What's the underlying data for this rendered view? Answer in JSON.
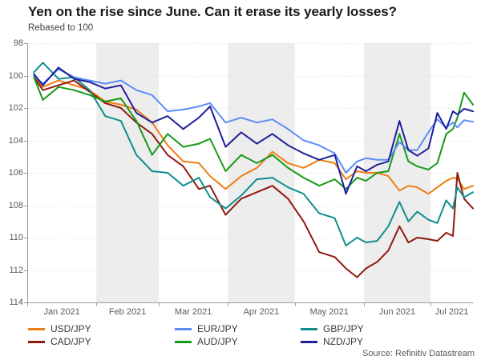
{
  "header": {
    "title": "Yen on the rise since June. Can it erase its yearly losses?",
    "subtitle": "Rebased to 100"
  },
  "source_note": "Source: Refinitiv Datastream",
  "chart_data": {
    "type": "line",
    "title": "Yen on the rise since June. Can it erase its yearly losses?",
    "subtitle": "Rebased to 100",
    "x_unit": "day_of_year_2021",
    "x_range_note": "Jan 2021 through mid-July 2021, daily currency pairs vs JPY rebased to 100 at start of year",
    "y_axis_inverted": true,
    "ylim": [
      98,
      114
    ],
    "yticks": [
      98,
      100,
      102,
      104,
      106,
      108,
      110,
      112,
      114
    ],
    "xticklabels": [
      "Jan 2021",
      "Feb 2021",
      "Mar 2021",
      "Apr 2021",
      "May 2021",
      "Jun 2021",
      "Jul 2021"
    ],
    "x_month_start_days": [
      0,
      31,
      59,
      90,
      120,
      151,
      181
    ],
    "x_label_center_days": [
      15.5,
      45,
      74.5,
      105,
      135.5,
      166,
      190.5
    ],
    "shaded_band_days": [
      [
        31,
        59
      ],
      [
        90,
        120
      ],
      [
        151,
        181
      ]
    ],
    "shaded_band_color": "#ededed",
    "grid": "dotted-horizontal",
    "gridline_color": "#d9d9d9",
    "axis_color": "#999999",
    "legend_position": "bottom",
    "x": [
      3,
      7,
      14,
      21,
      28,
      35,
      42,
      49,
      56,
      63,
      70,
      77,
      82,
      89,
      96,
      103,
      110,
      117,
      124,
      131,
      138,
      143,
      148,
      152,
      157,
      162,
      167,
      171,
      175,
      180,
      184,
      188,
      191,
      193,
      196,
      200
    ],
    "series": [
      {
        "name": "USD/JPY",
        "color": "#ef7c12",
        "values": [
          100.0,
          100.7,
          100.3,
          100.6,
          100.9,
          101.6,
          101.8,
          102.1,
          102.9,
          104.3,
          105.3,
          105.4,
          106.2,
          107.0,
          106.2,
          105.7,
          104.7,
          105.4,
          105.7,
          105.2,
          105.4,
          106.4,
          105.9,
          106.0,
          106.0,
          106.2,
          107.1,
          106.8,
          106.9,
          107.3,
          106.9,
          106.5,
          106.3,
          106.35,
          107.0,
          106.8
        ]
      },
      {
        "name": "EUR/JPY",
        "color": "#5b8cf6",
        "values": [
          100.0,
          100.5,
          99.6,
          100.1,
          100.3,
          100.5,
          100.3,
          100.9,
          101.2,
          102.2,
          102.1,
          101.9,
          101.7,
          102.9,
          102.6,
          102.9,
          102.7,
          103.3,
          104.0,
          104.3,
          104.8,
          106.0,
          105.3,
          105.1,
          105.2,
          105.2,
          104.1,
          104.6,
          104.6,
          103.5,
          102.7,
          103.2,
          102.9,
          103.2,
          102.75,
          102.85
        ]
      },
      {
        "name": "GBP/JPY",
        "color": "#0f8e8e",
        "values": [
          99.8,
          99.2,
          100.2,
          100.1,
          100.9,
          102.5,
          102.8,
          104.9,
          105.9,
          106.0,
          106.8,
          106.3,
          107.5,
          108.2,
          107.4,
          106.4,
          106.3,
          106.9,
          107.3,
          108.5,
          108.8,
          110.5,
          110.0,
          110.3,
          110.2,
          109.3,
          107.8,
          109.0,
          108.4,
          108.9,
          109.1,
          107.7,
          108.2,
          106.9,
          107.5,
          107.2
        ]
      },
      {
        "name": "CAD/JPY",
        "color": "#8e1a10",
        "values": [
          100.1,
          100.9,
          100.6,
          100.3,
          101.0,
          101.7,
          102.0,
          102.9,
          103.6,
          104.9,
          105.6,
          107.0,
          106.8,
          108.6,
          107.6,
          107.2,
          106.8,
          107.6,
          109.0,
          110.9,
          111.2,
          111.9,
          112.45,
          111.9,
          111.5,
          110.8,
          109.3,
          110.3,
          110.0,
          110.1,
          110.2,
          109.7,
          109.9,
          106.0,
          107.6,
          108.2
        ]
      },
      {
        "name": "AUD/JPY",
        "color": "#179b17",
        "values": [
          100.1,
          101.5,
          100.7,
          100.9,
          101.2,
          101.6,
          101.4,
          102.8,
          104.9,
          103.6,
          104.4,
          104.2,
          103.9,
          105.9,
          104.9,
          105.4,
          104.9,
          105.7,
          106.3,
          106.8,
          106.4,
          107.0,
          106.3,
          106.5,
          106.0,
          105.9,
          103.6,
          105.3,
          105.6,
          105.8,
          105.4,
          103.6,
          103.3,
          102.6,
          101.05,
          101.8
        ]
      },
      {
        "name": "NZD/JPY",
        "color": "#1f1f9c",
        "values": [
          99.9,
          100.6,
          99.5,
          100.2,
          100.4,
          100.8,
          100.6,
          102.3,
          102.9,
          102.5,
          103.3,
          102.6,
          101.9,
          104.4,
          103.5,
          104.2,
          103.6,
          104.3,
          104.8,
          105.2,
          104.9,
          107.3,
          105.6,
          105.9,
          105.5,
          105.3,
          102.8,
          104.6,
          104.95,
          104.5,
          102.3,
          103.3,
          102.2,
          102.4,
          102.05,
          102.2
        ]
      }
    ]
  }
}
